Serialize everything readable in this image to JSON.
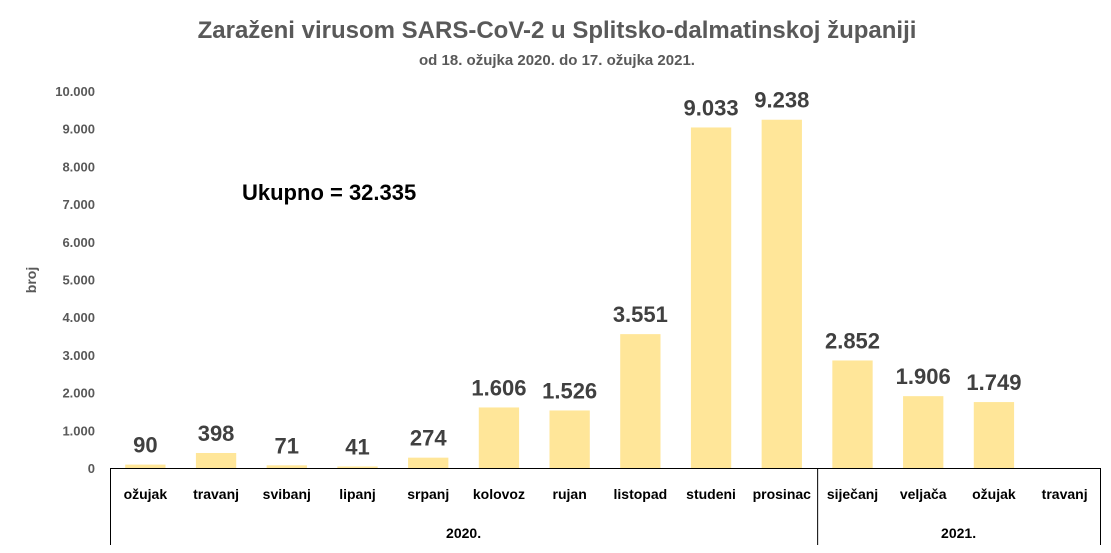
{
  "chart_data": {
    "type": "bar",
    "title": "Zaraženi virusom SARS-CoV-2 u Splitsko-dalmatinskoj županiji",
    "subtitle": "od 18. ožujka 2020. do 17. ožujka 2021.",
    "ylabel": "broj",
    "ylim": [
      0,
      10000
    ],
    "yticks": [
      0,
      1000,
      2000,
      3000,
      4000,
      5000,
      6000,
      7000,
      8000,
      9000,
      10000
    ],
    "ytick_labels": [
      "0",
      "1.000",
      "2.000",
      "3.000",
      "4.000",
      "5.000",
      "6.000",
      "7.000",
      "8.000",
      "9.000",
      "10.000"
    ],
    "categories": [
      "ožujak",
      "travanj",
      "svibanj",
      "lipanj",
      "srpanj",
      "kolovoz",
      "rujan",
      "listopad",
      "studeni",
      "prosinac",
      "siječanj",
      "veljača",
      "ožujak",
      "travanj"
    ],
    "values": [
      90,
      398,
      71,
      41,
      274,
      1606,
      1526,
      3551,
      9033,
      9238,
      2852,
      1906,
      1749,
      null
    ],
    "data_labels": [
      "90",
      "398",
      "71",
      "41",
      "274",
      "1.606",
      "1.526",
      "3.551",
      "9.033",
      "9.238",
      "2.852",
      "1.906",
      "1.749",
      ""
    ],
    "groups": [
      {
        "label": "2020.",
        "count": 10
      },
      {
        "label": "2021.",
        "count": 4
      }
    ],
    "annotation": "Ukupno = 32.335",
    "bar_color": "#FFE699",
    "grid": false,
    "legend": "none"
  }
}
